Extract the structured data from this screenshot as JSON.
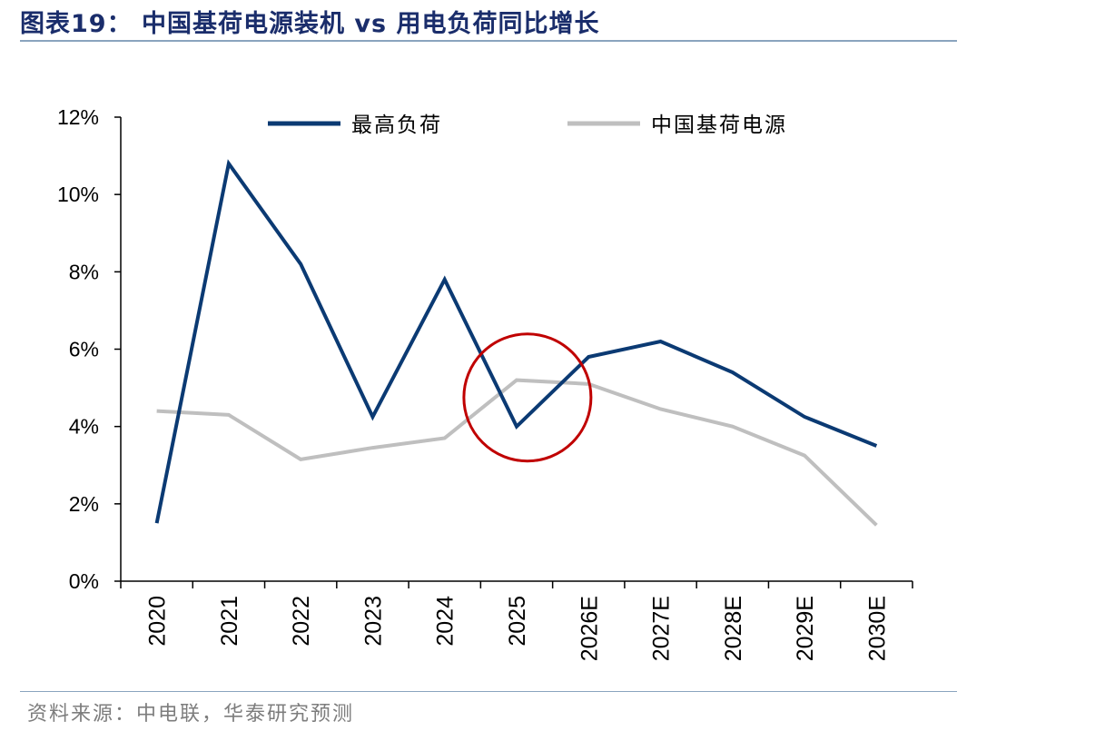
{
  "header": {
    "title": "图表19：  中国基荷电源装机 vs 用电负荷同比增长"
  },
  "footer": {
    "source": "资料来源：中电联，华泰研究预测"
  },
  "chart_data": {
    "type": "line",
    "categories": [
      "2020",
      "2021",
      "2022",
      "2023",
      "2024",
      "2025",
      "2026E",
      "2027E",
      "2028E",
      "2029E",
      "2030E"
    ],
    "series": [
      {
        "name": "最高负荷",
        "color": "#0b3a73",
        "values": [
          1.5,
          10.8,
          8.2,
          4.25,
          7.8,
          4.0,
          5.8,
          6.2,
          5.4,
          4.25,
          3.5
        ]
      },
      {
        "name": "中国基荷电源",
        "color": "#bfbfbf",
        "values": [
          4.4,
          4.3,
          3.15,
          3.45,
          3.7,
          5.2,
          5.1,
          4.45,
          4.0,
          3.25,
          1.45
        ]
      }
    ],
    "ylim": [
      0,
      12
    ],
    "yticks": [
      0,
      2,
      4,
      6,
      8,
      10,
      12
    ],
    "ytick_labels": [
      "0%",
      "2%",
      "4%",
      "6%",
      "8%",
      "10%",
      "12%"
    ],
    "ylabel": "",
    "xlabel": "",
    "legend_position": "top",
    "annotation": {
      "shape": "circle",
      "color": "#c00000",
      "center_x": 5.15,
      "center_y": 4.75
    }
  }
}
